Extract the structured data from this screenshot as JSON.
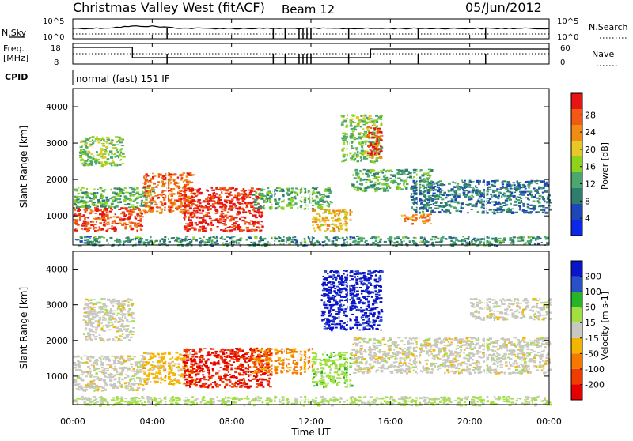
{
  "header": {
    "title": "Christmas Valley West (fitACF)",
    "beam": "Beam 12",
    "date": "05/Jun/2012"
  },
  "top_panels": {
    "nsky_label": "N.Sky",
    "nsearch_label": "N.Search",
    "nsky_ticks": [
      "10^5",
      "10^0"
    ],
    "nsearch_ticks": [
      "10^5",
      "10^0"
    ],
    "freq_label_1": "Freq.",
    "freq_label_2": "[MHz]",
    "freq_ticks": [
      "18",
      "8"
    ],
    "nave_label": "Nave",
    "nave_ticks": [
      "60",
      "0"
    ],
    "cpid_label": "CPID",
    "cpid_value": "normal (fast) 151 IF"
  },
  "x_axis": {
    "label": "Time UT",
    "ticks": [
      "00:00",
      "04:00",
      "08:00",
      "12:00",
      "16:00",
      "20:00",
      "00:00"
    ]
  },
  "colors": {
    "power": [
      "#0a28e6",
      "#1e46b4",
      "#2e7d6e",
      "#4aa86e",
      "#8ed21e",
      "#e6c828",
      "#f08c14",
      "#f05a14",
      "#e61414"
    ],
    "velocity": [
      "#e60000",
      "#f03c00",
      "#f57800",
      "#f5b400",
      "#c8c8c0",
      "#a0e040",
      "#28b428",
      "#2850c8",
      "#0a14c8"
    ]
  },
  "chart_data": [
    {
      "type": "heatmap",
      "title": "",
      "ylabel": "Slant Range [km]",
      "xlabel": "",
      "y_ticks": [
        "1000",
        "2000",
        "3000",
        "4000"
      ],
      "ylim": [
        200,
        4500
      ],
      "xlim_hours": [
        0,
        24
      ],
      "colorbar_label": "Power [dB]",
      "colorbar_ticks": [
        "4",
        "8",
        "12",
        "16",
        "20",
        "24",
        "28"
      ],
      "colorbar_range": [
        0,
        30
      ],
      "regions": [
        {
          "t0": 0,
          "t1": 3.5,
          "r0": 600,
          "r1": 1250,
          "value": 26
        },
        {
          "t0": 0,
          "t1": 4,
          "r0": 1250,
          "r1": 1800,
          "value": 12
        },
        {
          "t0": 0.3,
          "t1": 2.5,
          "r0": 2400,
          "r1": 3200,
          "value": 14
        },
        {
          "t0": 3.5,
          "t1": 6,
          "r0": 1100,
          "r1": 2200,
          "value": 24
        },
        {
          "t0": 5.5,
          "t1": 9.5,
          "r0": 600,
          "r1": 1800,
          "value": 28
        },
        {
          "t0": 9,
          "t1": 13,
          "r0": 1200,
          "r1": 1800,
          "value": 12
        },
        {
          "t0": 12,
          "t1": 14,
          "r0": 600,
          "r1": 1200,
          "value": 20
        },
        {
          "t0": 13.5,
          "t1": 15.5,
          "r0": 2500,
          "r1": 3800,
          "value": 14
        },
        {
          "t0": 14.8,
          "t1": 15.5,
          "r0": 2600,
          "r1": 3500,
          "value": 26
        },
        {
          "t0": 14,
          "t1": 18,
          "r0": 1700,
          "r1": 2300,
          "value": 12
        },
        {
          "t0": 16.5,
          "t1": 18,
          "r0": 800,
          "r1": 1100,
          "value": 22
        },
        {
          "t0": 17,
          "t1": 24,
          "r0": 1100,
          "r1": 2000,
          "value": 8
        },
        {
          "t0": 0,
          "t1": 24,
          "r0": 200,
          "r1": 450,
          "value": 10
        }
      ]
    },
    {
      "type": "heatmap",
      "title": "",
      "ylabel": "Slant Range [km]",
      "xlabel": "Time UT",
      "y_ticks": [
        "1000",
        "2000",
        "3000",
        "4000"
      ],
      "ylim": [
        200,
        4500
      ],
      "xlim_hours": [
        0,
        24
      ],
      "colorbar_label": "Velocity [m s-1]",
      "colorbar_ticks": [
        "200",
        "100",
        "50",
        "15",
        "-15",
        "-50",
        "-100",
        "-200"
      ],
      "colorbar_range": [
        -250,
        250
      ],
      "regions": [
        {
          "t0": 0,
          "t1": 3.5,
          "r0": 600,
          "r1": 1600,
          "value": 0
        },
        {
          "t0": 0.5,
          "t1": 3,
          "r0": 2000,
          "r1": 3200,
          "value": 0
        },
        {
          "t0": 3.5,
          "t1": 6,
          "r0": 800,
          "r1": 1700,
          "value": -50
        },
        {
          "t0": 5.5,
          "t1": 10,
          "r0": 700,
          "r1": 1800,
          "value": -200
        },
        {
          "t0": 9,
          "t1": 12,
          "r0": 1100,
          "r1": 1800,
          "value": -100
        },
        {
          "t0": 12,
          "t1": 14,
          "r0": 700,
          "r1": 1700,
          "value": 60
        },
        {
          "t0": 12.5,
          "t1": 15.5,
          "r0": 2300,
          "r1": 4000,
          "value": 220
        },
        {
          "t0": 14,
          "t1": 24,
          "r0": 1100,
          "r1": 2100,
          "value": 0
        },
        {
          "t0": 20,
          "t1": 24,
          "r0": 2600,
          "r1": 3200,
          "value": 0
        },
        {
          "t0": 0,
          "t1": 24,
          "r0": 200,
          "r1": 450,
          "value": 40
        }
      ]
    }
  ]
}
